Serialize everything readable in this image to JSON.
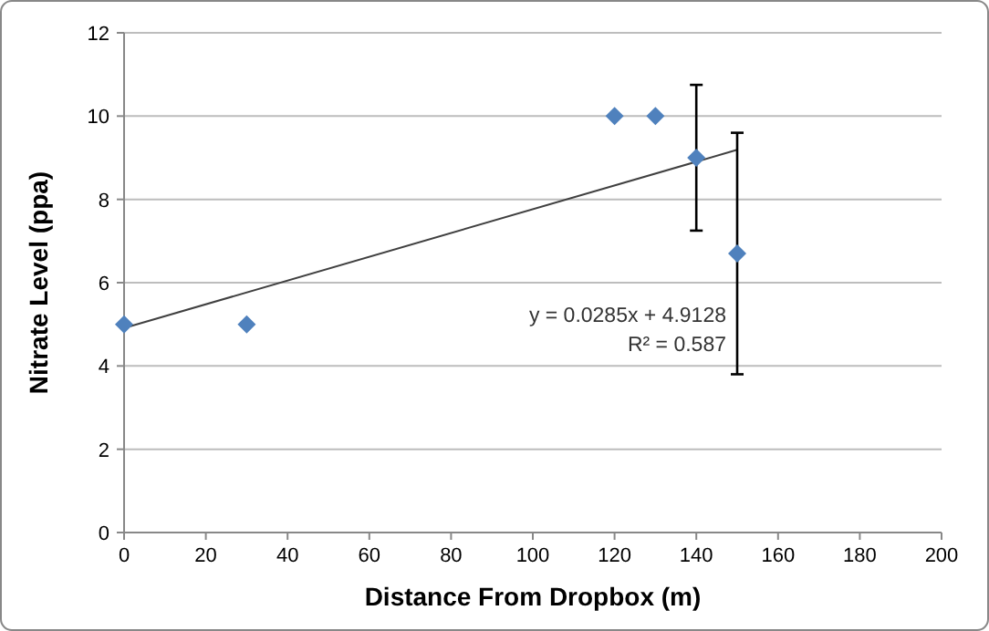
{
  "chart_data": {
    "type": "scatter",
    "xlabel": "Distance From Dropbox (m)",
    "ylabel": "Nitrate Level (ppa)",
    "xlim": [
      0,
      200
    ],
    "xticks": [
      0,
      20,
      40,
      60,
      80,
      100,
      120,
      140,
      160,
      180,
      200
    ],
    "ylim": [
      0,
      12
    ],
    "yticks": [
      0,
      2,
      4,
      6,
      8,
      10,
      12
    ],
    "grid": "y",
    "series": [
      {
        "marker": "diamond",
        "color": "#4f81bd",
        "x": [
          0,
          30,
          120,
          130,
          140,
          150
        ],
        "values": [
          5,
          5,
          10,
          10,
          9,
          6.7
        ],
        "errors": [
          null,
          null,
          null,
          null,
          [
            7.25,
            10.75
          ],
          [
            3.8,
            9.6
          ]
        ]
      },
      {
        "type": "line",
        "color": "#404040",
        "x": [
          0,
          150
        ],
        "values": [
          4.91,
          9.19
        ]
      }
    ],
    "annotations": [
      "y = 0.0285x + 4.9128",
      "R² = 0.587"
    ]
  }
}
